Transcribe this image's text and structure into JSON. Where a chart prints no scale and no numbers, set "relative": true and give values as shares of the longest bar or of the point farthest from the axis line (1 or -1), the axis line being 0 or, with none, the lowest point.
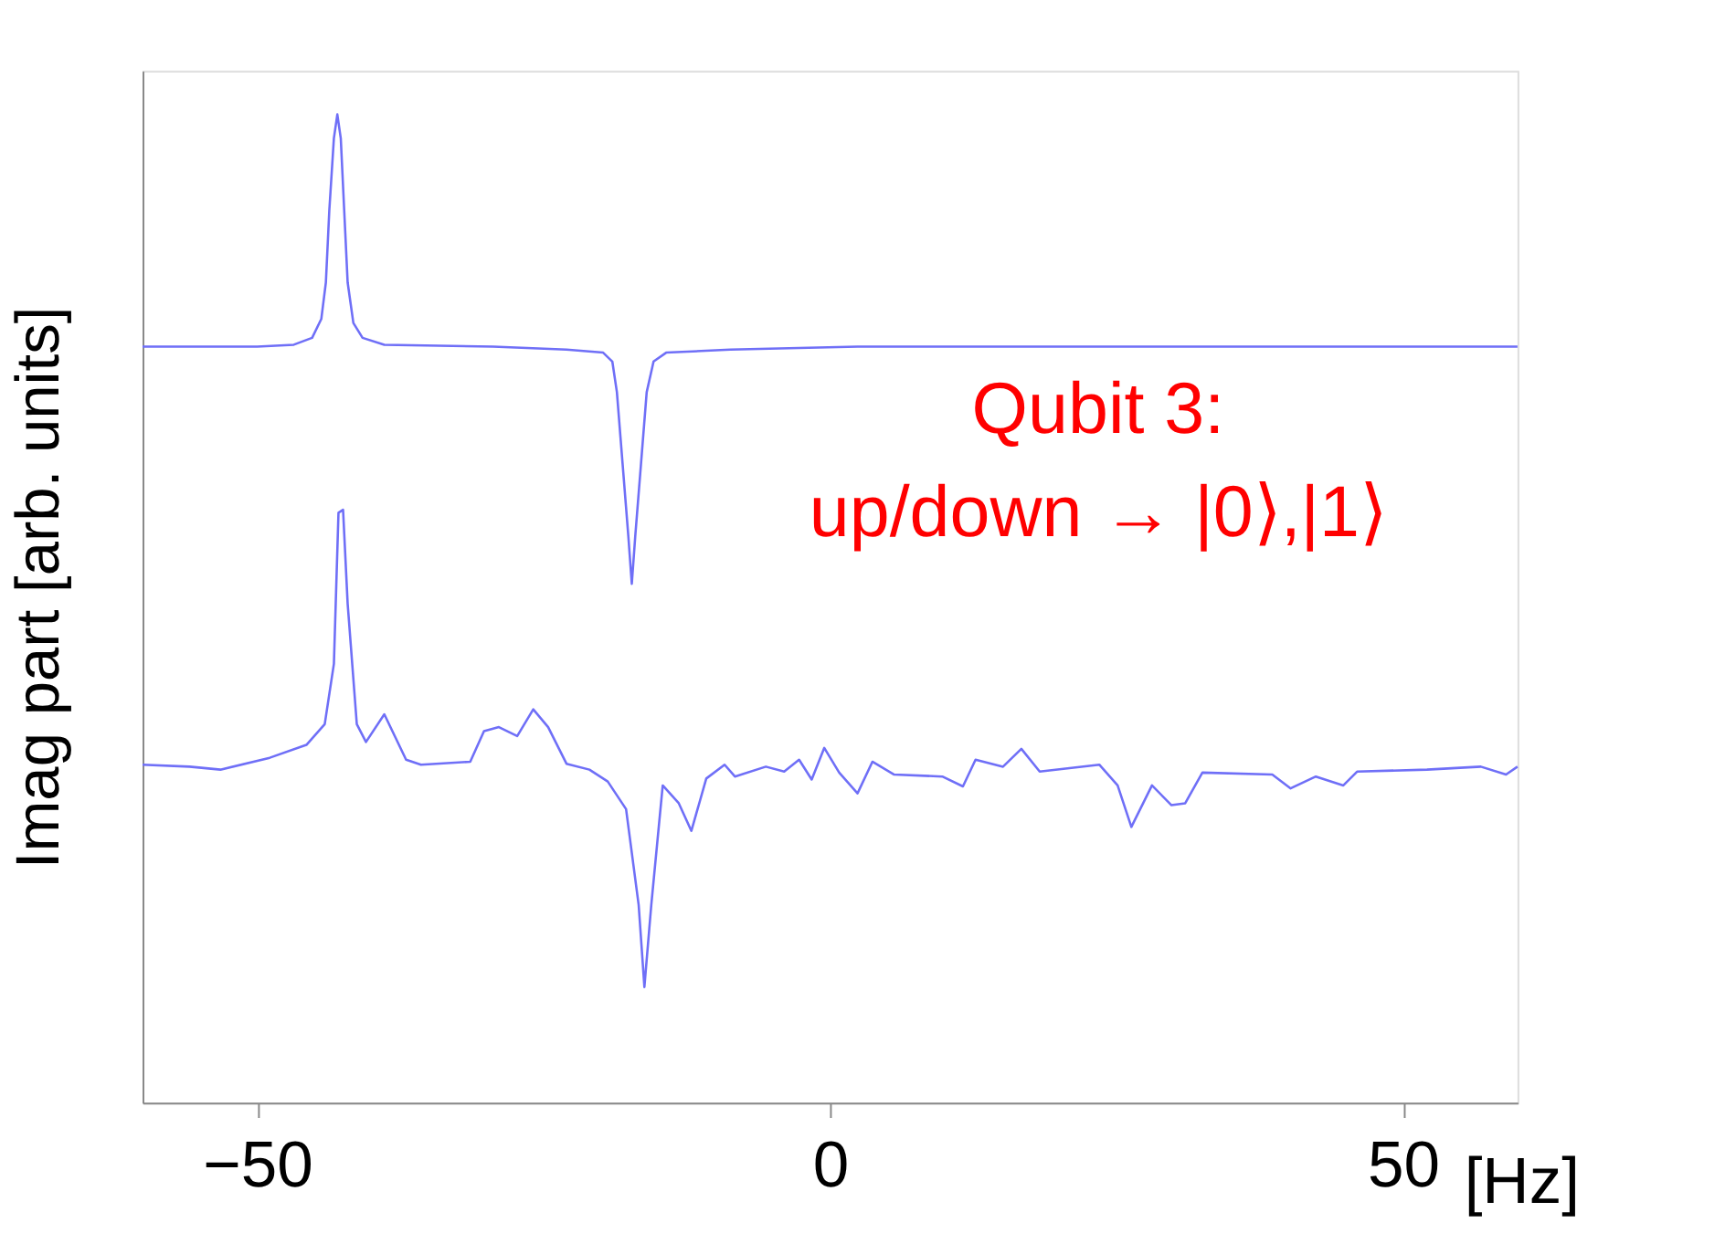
{
  "chart_data": {
    "type": "line",
    "relative": true,
    "xlabel": "[Hz]",
    "ylabel": "Imag part [arb. units]",
    "xlim": [
      -60,
      60
    ],
    "xticks": [
      -50,
      0,
      50
    ],
    "grid": false,
    "legend": false,
    "marker": "none",
    "line_style": "solid",
    "annotations": [
      "Qubit 3:",
      "up/down → |0⟩,|1⟩"
    ],
    "series": [
      {
        "color": "#6f6ff7",
        "x": [
          -60,
          -50.0,
          -46.8,
          -45.2,
          -44.4,
          -44.0,
          -43.7,
          -43.3,
          -43.0,
          -42.7,
          -42.4,
          -42.1,
          -41.6,
          -40.8,
          -38.9,
          -29.4,
          -23.0,
          -19.8,
          -19.0,
          -18.6,
          -18.1,
          -17.6,
          -17.3,
          -17.0,
          -16.5,
          -16.0,
          -15.4,
          -14.3,
          -8.7,
          2.4,
          60
        ],
        "values": [
          0.765,
          0.765,
          0.767,
          0.774,
          0.793,
          0.83,
          0.903,
          0.976,
          1,
          0.976,
          0.903,
          0.83,
          0.789,
          0.774,
          0.767,
          0.765,
          0.762,
          0.759,
          0.75,
          0.719,
          0.646,
          0.573,
          0.525,
          0.573,
          0.646,
          0.719,
          0.75,
          0.759,
          0.762,
          0.765,
          0.765
        ]
      },
      {
        "color": "#6f6ff7",
        "x": [
          -60,
          -55.9,
          -53.2,
          -48.9,
          -45.7,
          -44.1,
          -43.3,
          -42.9,
          -42.5,
          -42.1,
          -41.3,
          -40.5,
          -38.9,
          -37.0,
          -35.7,
          -31.4,
          -30.2,
          -28.9,
          -27.3,
          -25.9,
          -24.6,
          -23.0,
          -21.0,
          -19.4,
          -17.8,
          -16.7,
          -16.2,
          -15.6,
          -14.6,
          -13.2,
          -12.1,
          -10.8,
          -9.2,
          -8.3,
          -5.6,
          -4.0,
          -2.7,
          -1.6,
          -0.5,
          0.8,
          2.4,
          3.7,
          5.6,
          9.8,
          11.6,
          12.7,
          15.1,
          16.7,
          18.3,
          23.5,
          25.1,
          26.3,
          28.1,
          29.8,
          31.0,
          32.5,
          38.6,
          40.2,
          42.4,
          44.8,
          46.0,
          52.1,
          56.8,
          59.0,
          60
        ],
        "values": [
          0.342,
          0.34,
          0.337,
          0.349,
          0.362,
          0.383,
          0.444,
          0.597,
          0.6,
          0.505,
          0.383,
          0.365,
          0.393,
          0.347,
          0.342,
          0.345,
          0.376,
          0.38,
          0.371,
          0.398,
          0.38,
          0.343,
          0.337,
          0.325,
          0.297,
          0.2,
          0.117,
          0.2,
          0.321,
          0.303,
          0.275,
          0.328,
          0.342,
          0.33,
          0.34,
          0.335,
          0.347,
          0.327,
          0.359,
          0.334,
          0.313,
          0.345,
          0.332,
          0.33,
          0.32,
          0.347,
          0.34,
          0.358,
          0.335,
          0.342,
          0.321,
          0.279,
          0.321,
          0.301,
          0.303,
          0.334,
          0.332,
          0.318,
          0.33,
          0.321,
          0.335,
          0.337,
          0.34,
          0.332,
          0.34
        ]
      }
    ]
  }
}
